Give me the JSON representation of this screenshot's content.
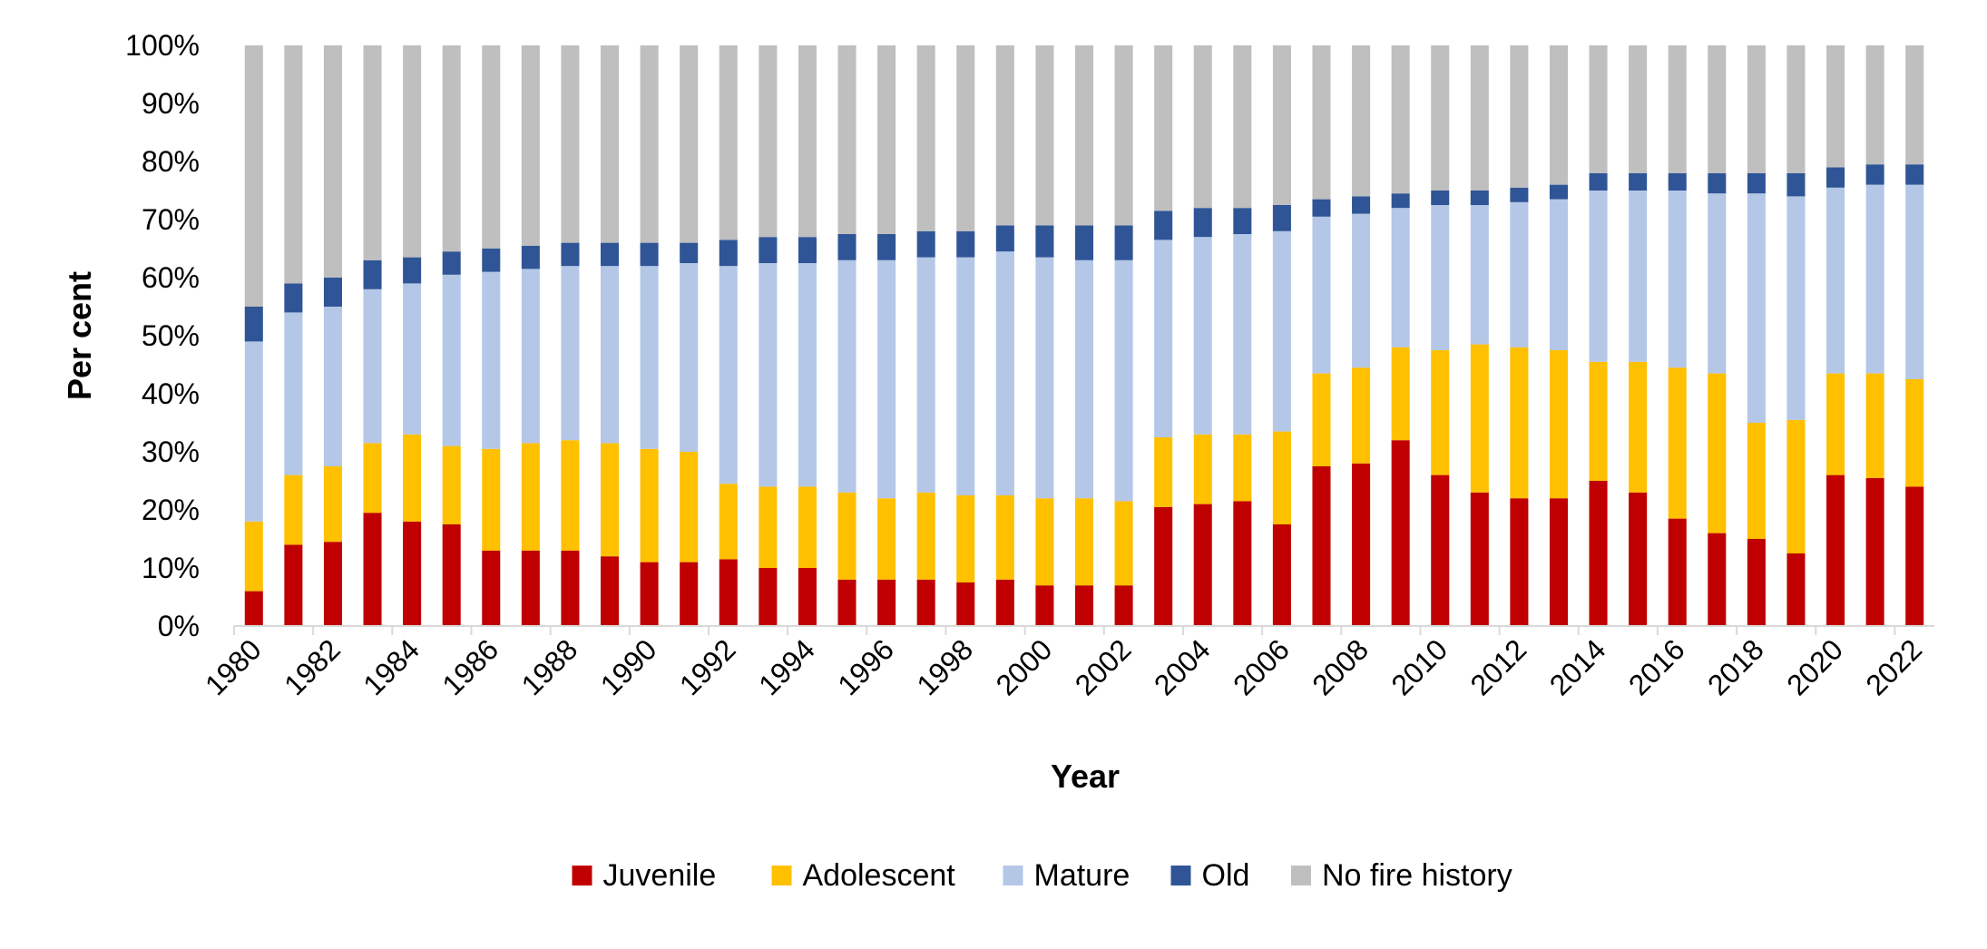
{
  "chart_data": {
    "type": "bar",
    "stacked": "percent",
    "title": "",
    "xlabel": "Year",
    "ylabel": "Per cent",
    "ylim": [
      0,
      100
    ],
    "y_ticks": [
      "0%",
      "10%",
      "20%",
      "30%",
      "40%",
      "50%",
      "60%",
      "70%",
      "80%",
      "90%",
      "100%"
    ],
    "x_tick_labels": [
      "1980",
      "1982",
      "1984",
      "1986",
      "1988",
      "1990",
      "1992",
      "1994",
      "1996",
      "1998",
      "2000",
      "2002",
      "2004",
      "2006",
      "2008",
      "2010",
      "2012",
      "2014",
      "2016",
      "2018",
      "2020",
      "2022"
    ],
    "grid": false,
    "legend_position": "bottom",
    "categories": [
      "1980",
      "1981",
      "1982",
      "1983",
      "1984",
      "1985",
      "1986",
      "1987",
      "1988",
      "1989",
      "1990",
      "1991",
      "1992",
      "1993",
      "1994",
      "1995",
      "1996",
      "1997",
      "1998",
      "1999",
      "2000",
      "2001",
      "2002",
      "2003",
      "2004",
      "2005",
      "2006",
      "2007",
      "2008",
      "2009",
      "2010",
      "2011",
      "2012",
      "2013",
      "2014",
      "2015",
      "2016",
      "2017",
      "2018",
      "2019",
      "2020",
      "2021",
      "2022"
    ],
    "series": [
      {
        "name": "Juvenile",
        "color": "#C00000",
        "values": [
          6,
          14,
          14.5,
          19.5,
          18,
          17.5,
          13,
          13,
          13,
          12,
          11,
          11,
          11.5,
          10,
          10,
          8,
          8,
          8,
          7.5,
          8,
          7,
          7,
          7,
          20.5,
          21,
          21.5,
          17.5,
          27.5,
          28,
          32,
          26,
          23,
          22,
          22,
          25,
          23,
          18.5,
          16,
          15,
          12.5,
          26,
          25.5,
          24
        ]
      },
      {
        "name": "Adolescent",
        "color": "#FFC000",
        "values": [
          12,
          12,
          13,
          12,
          15,
          13.5,
          17.5,
          18.5,
          19,
          19.5,
          19.5,
          19,
          13,
          14,
          14,
          15,
          14,
          15,
          15,
          14.5,
          15,
          15,
          14.5,
          12,
          12,
          11.5,
          16,
          16,
          16.5,
          16,
          21.5,
          25.5,
          26,
          25.5,
          20.5,
          22.5,
          26,
          27.5,
          20,
          23,
          17.5,
          18,
          18.5
        ]
      },
      {
        "name": "Mature",
        "color": "#B4C7E7",
        "values": [
          31,
          28,
          27.5,
          26.5,
          26,
          29.5,
          30.5,
          30,
          30,
          30.5,
          31.5,
          32.5,
          37.5,
          38.5,
          38.5,
          40,
          41,
          40.5,
          41,
          42,
          41.5,
          41,
          41.5,
          34,
          34,
          34.5,
          34.5,
          27,
          26.5,
          24,
          25,
          24,
          25,
          26,
          29.5,
          29.5,
          30.5,
          31,
          39.5,
          38.5,
          32,
          32.5,
          33.5
        ]
      },
      {
        "name": "Old",
        "color": "#2F5597",
        "values": [
          6,
          5,
          5,
          5,
          4.5,
          4,
          4,
          4,
          4,
          4,
          4,
          3.5,
          4.5,
          4.5,
          4.5,
          4.5,
          4.5,
          4.5,
          4.5,
          4.5,
          5.5,
          6,
          6,
          5,
          5,
          4.5,
          4.5,
          3,
          3,
          2.5,
          2.5,
          2.5,
          2.5,
          2.5,
          3,
          3,
          3,
          3.5,
          3.5,
          4,
          3.5,
          3.5,
          3.5
        ]
      },
      {
        "name": "No fire history",
        "color": "#BFBFBF",
        "values": [
          45,
          41,
          40,
          37,
          36.5,
          35.5,
          35,
          34.5,
          34,
          34,
          34,
          34,
          33.5,
          33,
          33,
          32.5,
          32.5,
          32,
          32,
          31,
          31,
          31,
          31,
          28.5,
          28,
          28,
          27.5,
          26.5,
          26,
          25.5,
          25,
          25,
          24.5,
          24,
          22,
          22,
          22,
          22,
          22,
          22,
          21,
          20.5,
          20.5
        ]
      }
    ]
  }
}
